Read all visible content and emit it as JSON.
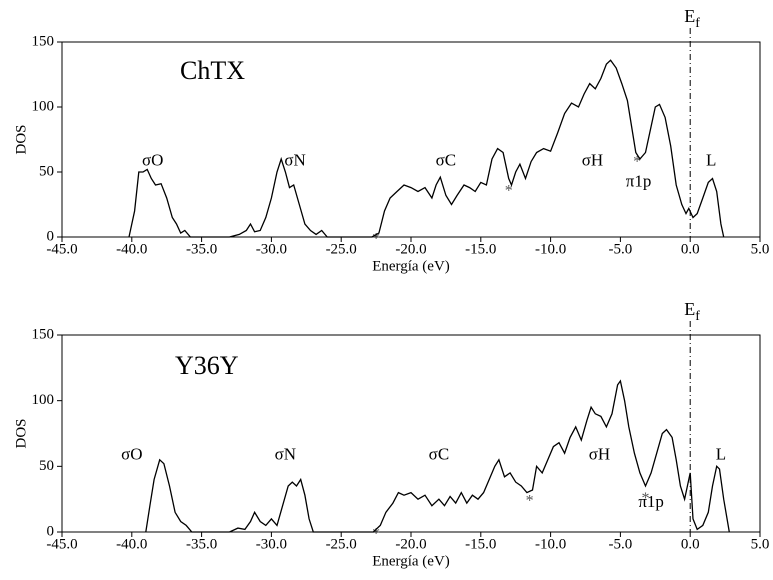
{
  "chart_data": [
    {
      "type": "line",
      "title": "ChTX",
      "xlabel": "Energía (eV)",
      "ylabel": "DOS",
      "xlim": [
        -45,
        5
      ],
      "ylim": [
        0,
        150
      ],
      "xticks": [
        {
          "value": -45,
          "label": "-45.0"
        },
        {
          "value": -40,
          "label": "-40.0"
        },
        {
          "value": -35,
          "label": "-35.0"
        },
        {
          "value": -30,
          "label": "-30.0"
        },
        {
          "value": -25,
          "label": "-25.0"
        },
        {
          "value": -20,
          "label": "-20.0"
        },
        {
          "value": -15,
          "label": "-15.0"
        },
        {
          "value": -10,
          "label": "-10.0"
        },
        {
          "value": -5,
          "label": "-5.0"
        },
        {
          "value": 0,
          "label": "0.0"
        },
        {
          "value": 5,
          "label": "5.0"
        }
      ],
      "yticks": [
        0,
        50,
        100,
        150
      ],
      "vline": 0,
      "vline_label": "E",
      "vline_sub": "f",
      "annotations": [
        "σO",
        "σN",
        "σC",
        "σH",
        "π1p",
        "L",
        "*",
        "*",
        "*"
      ],
      "x": [
        -40.2,
        -39.8,
        -39.5,
        -39.2,
        -38.9,
        -38.6,
        -38.3,
        -37.9,
        -37.5,
        -37.1,
        -36.8,
        -36.5,
        -36.2,
        -35.8,
        -33,
        -32.3,
        -31.8,
        -31.5,
        -31.2,
        -30.8,
        -30.4,
        -30,
        -29.6,
        -29.3,
        -29,
        -28.7,
        -28.4,
        -28,
        -27.6,
        -27.2,
        -26.8,
        -26.4,
        -26,
        -22.8,
        -22.3,
        -21.9,
        -21.5,
        -21,
        -20.5,
        -20,
        -19.5,
        -19,
        -18.5,
        -18.2,
        -17.9,
        -17.5,
        -17.1,
        -16.7,
        -16.2,
        -15.8,
        -15.4,
        -15,
        -14.6,
        -14.2,
        -13.8,
        -13.4,
        -13,
        -12.8,
        -12.5,
        -12.2,
        -11.8,
        -11.4,
        -11,
        -10.5,
        -10,
        -9.5,
        -9,
        -8.5,
        -8,
        -7.6,
        -7.2,
        -6.8,
        -6.4,
        -6,
        -5.7,
        -5.3,
        -4.9,
        -4.5,
        -4.2,
        -3.9,
        -3.6,
        -3.2,
        -2.8,
        -2.5,
        -2.2,
        -1.8,
        -1.4,
        -1,
        -0.6,
        -0.3,
        -0.1,
        0.2,
        0.5,
        0.9,
        1.3,
        1.6,
        1.9,
        2.2,
        2.4
      ],
      "series": [
        {
          "color": "#000000",
          "values": [
            0,
            20,
            50,
            50,
            52,
            45,
            40,
            41,
            30,
            15,
            10,
            3,
            5,
            0,
            0,
            2,
            5,
            10,
            4,
            5,
            15,
            30,
            50,
            60,
            50,
            38,
            40,
            25,
            10,
            5,
            2,
            5,
            0,
            0,
            3,
            20,
            30,
            35,
            40,
            38,
            35,
            38,
            30,
            40,
            46,
            32,
            25,
            32,
            40,
            38,
            35,
            42,
            40,
            60,
            68,
            65,
            45,
            40,
            50,
            56,
            45,
            58,
            65,
            68,
            66,
            80,
            95,
            103,
            100,
            110,
            118,
            114,
            122,
            133,
            136,
            130,
            118,
            105,
            85,
            65,
            60,
            65,
            85,
            100,
            102,
            92,
            70,
            40,
            25,
            18,
            22,
            15,
            18,
            30,
            42,
            45,
            35,
            10,
            0
          ]
        }
      ]
    },
    {
      "type": "line",
      "title": "Y36Y",
      "xlabel": "Energía (eV)",
      "ylabel": "DOS",
      "xlim": [
        -45,
        5
      ],
      "ylim": [
        0,
        150
      ],
      "xticks": [
        {
          "value": -45,
          "label": "-45.0"
        },
        {
          "value": -40,
          "label": "-40.0"
        },
        {
          "value": -35,
          "label": "-35.0"
        },
        {
          "value": -30,
          "label": "-30.0"
        },
        {
          "value": -25,
          "label": "-25.0"
        },
        {
          "value": -20,
          "label": "-20.0"
        },
        {
          "value": -15,
          "label": "-15.0"
        },
        {
          "value": -10,
          "label": "-10.0"
        },
        {
          "value": -5,
          "label": "-5.0"
        },
        {
          "value": 0,
          "label": "0.0"
        },
        {
          "value": 5,
          "label": "5.0"
        }
      ],
      "yticks": [
        0,
        50,
        100,
        150
      ],
      "vline": 0,
      "vline_label": "E",
      "vline_sub": "f",
      "annotations": [
        "σO",
        "σN",
        "σC",
        "σH",
        "π1p",
        "L",
        "*",
        "*",
        "*"
      ],
      "x": [
        -39,
        -38.7,
        -38.4,
        -38,
        -37.7,
        -37.3,
        -36.9,
        -36.5,
        -36.1,
        -35.7,
        -33,
        -32.4,
        -31.9,
        -31.5,
        -31.2,
        -30.8,
        -30.4,
        -30,
        -29.6,
        -29.2,
        -28.8,
        -28.5,
        -28.2,
        -27.9,
        -27.6,
        -27.3,
        -27,
        -22.7,
        -22.2,
        -21.8,
        -21.3,
        -20.9,
        -20.5,
        -20,
        -19.5,
        -19,
        -18.5,
        -18,
        -17.6,
        -17.2,
        -16.8,
        -16.4,
        -16,
        -15.6,
        -15.2,
        -14.8,
        -14.4,
        -14,
        -13.7,
        -13.3,
        -12.9,
        -12.5,
        -12.1,
        -11.7,
        -11.3,
        -11,
        -10.6,
        -10.2,
        -9.8,
        -9.4,
        -9,
        -8.6,
        -8.2,
        -7.8,
        -7.4,
        -7.1,
        -6.8,
        -6.4,
        -6,
        -5.6,
        -5.2,
        -5,
        -4.7,
        -4.4,
        -4,
        -3.6,
        -3.2,
        -2.8,
        -2.4,
        -2,
        -1.7,
        -1.3,
        -1,
        -0.7,
        -0.4,
        -0.2,
        0,
        0.2,
        0.5,
        0.9,
        1.3,
        1.6,
        1.9,
        2.1,
        2.4,
        2.8
      ],
      "series": [
        {
          "color": "#000000",
          "values": [
            0,
            20,
            40,
            55,
            52,
            35,
            15,
            8,
            5,
            0,
            0,
            3,
            2,
            8,
            15,
            8,
            5,
            10,
            5,
            20,
            35,
            38,
            35,
            40,
            28,
            10,
            0,
            0,
            5,
            15,
            22,
            30,
            28,
            30,
            25,
            28,
            20,
            25,
            20,
            27,
            22,
            30,
            22,
            28,
            25,
            30,
            40,
            50,
            55,
            42,
            45,
            38,
            35,
            30,
            32,
            50,
            45,
            55,
            65,
            68,
            60,
            72,
            80,
            70,
            85,
            95,
            90,
            88,
            80,
            90,
            112,
            115,
            100,
            80,
            60,
            45,
            35,
            45,
            60,
            75,
            78,
            72,
            55,
            35,
            25,
            35,
            45,
            10,
            2,
            5,
            15,
            35,
            50,
            48,
            25,
            0
          ]
        }
      ]
    }
  ]
}
